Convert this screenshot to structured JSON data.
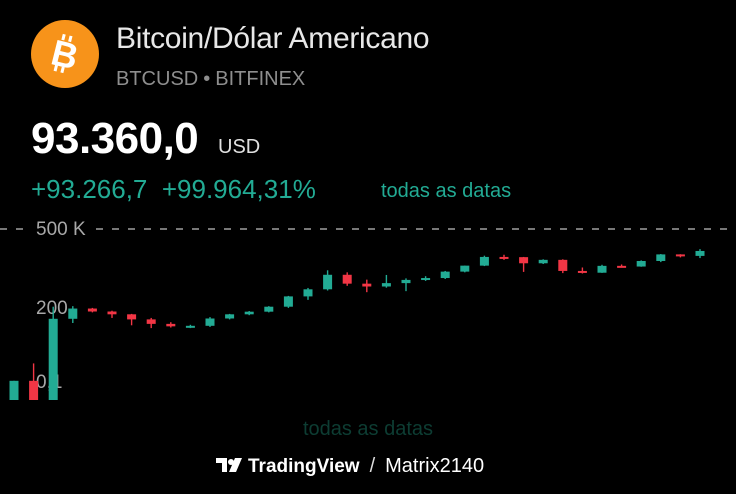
{
  "header": {
    "title": "Bitcoin/Dólar Americano",
    "symbol": "BTCUSD",
    "separator": "•",
    "exchange": "BITFINEX",
    "logo_icon": "bitcoin-icon",
    "logo_color": "#f7931a"
  },
  "quote": {
    "price": "93.360,0",
    "currency": "USD",
    "change_abs": "+93.266,7",
    "change_pct": "+99.964,31%",
    "range_label": "todas as datas"
  },
  "colors": {
    "up": "#22ab94",
    "down": "#f23645",
    "text_muted": "#8e8e8e"
  },
  "chart_data": {
    "type": "candlestick",
    "scale": "log",
    "y_ticks": [
      "500 K",
      "200",
      "0,1"
    ],
    "current_price_line": "dashed",
    "candles": [
      {
        "o": 0.5,
        "h": 3,
        "l": 0.06,
        "c": 3
      },
      {
        "o": 3,
        "h": 12,
        "l": 0.2,
        "c": 0.4
      },
      {
        "o": 0.4,
        "h": 1100,
        "l": 0.3,
        "c": 420
      },
      {
        "o": 420,
        "h": 1150,
        "l": 300,
        "c": 950
      },
      {
        "o": 950,
        "h": 1000,
        "l": 700,
        "c": 750
      },
      {
        "o": 750,
        "h": 800,
        "l": 450,
        "c": 600
      },
      {
        "o": 600,
        "h": 620,
        "l": 250,
        "c": 400
      },
      {
        "o": 400,
        "h": 450,
        "l": 200,
        "c": 280
      },
      {
        "o": 280,
        "h": 320,
        "l": 210,
        "c": 230
      },
      {
        "o": 230,
        "h": 260,
        "l": 200,
        "c": 240
      },
      {
        "o": 240,
        "h": 480,
        "l": 220,
        "c": 430
      },
      {
        "o": 430,
        "h": 620,
        "l": 400,
        "c": 600
      },
      {
        "o": 600,
        "h": 780,
        "l": 560,
        "c": 740
      },
      {
        "o": 740,
        "h": 1150,
        "l": 700,
        "c": 1100
      },
      {
        "o": 1100,
        "h": 2600,
        "l": 1000,
        "c": 2500
      },
      {
        "o": 2500,
        "h": 4900,
        "l": 1900,
        "c": 4400
      },
      {
        "o": 4400,
        "h": 20000,
        "l": 4000,
        "c": 14000
      },
      {
        "o": 14000,
        "h": 17000,
        "l": 5800,
        "c": 6900
      },
      {
        "o": 6900,
        "h": 9500,
        "l": 3500,
        "c": 5500
      },
      {
        "o": 5500,
        "h": 13800,
        "l": 5000,
        "c": 7200
      },
      {
        "o": 7200,
        "h": 10500,
        "l": 3800,
        "c": 9300
      },
      {
        "o": 9300,
        "h": 12500,
        "l": 8600,
        "c": 10800
      },
      {
        "o": 10800,
        "h": 19000,
        "l": 10000,
        "c": 18000
      },
      {
        "o": 18000,
        "h": 29000,
        "l": 17000,
        "c": 29000
      },
      {
        "o": 29000,
        "h": 64000,
        "l": 28000,
        "c": 58000
      },
      {
        "o": 58000,
        "h": 69000,
        "l": 46000,
        "c": 57000
      },
      {
        "o": 57000,
        "h": 58000,
        "l": 17600,
        "c": 35000
      },
      {
        "o": 35000,
        "h": 48000,
        "l": 33000,
        "c": 46000
      },
      {
        "o": 46000,
        "h": 48000,
        "l": 16000,
        "c": 19000
      },
      {
        "o": 19000,
        "h": 25000,
        "l": 15500,
        "c": 16500
      },
      {
        "o": 16500,
        "h": 31000,
        "l": 16300,
        "c": 28500
      },
      {
        "o": 28500,
        "h": 31800,
        "l": 24800,
        "c": 27000
      },
      {
        "o": 27000,
        "h": 44000,
        "l": 26500,
        "c": 42000
      },
      {
        "o": 42000,
        "h": 73000,
        "l": 38500,
        "c": 71000
      },
      {
        "o": 71000,
        "h": 72000,
        "l": 56000,
        "c": 63000
      },
      {
        "o": 63000,
        "h": 108000,
        "l": 53000,
        "c": 93360
      }
    ]
  },
  "footer": {
    "range_label": "todas as datas",
    "brand": "TradingView",
    "slash": "/",
    "author": "Matrix2140"
  }
}
